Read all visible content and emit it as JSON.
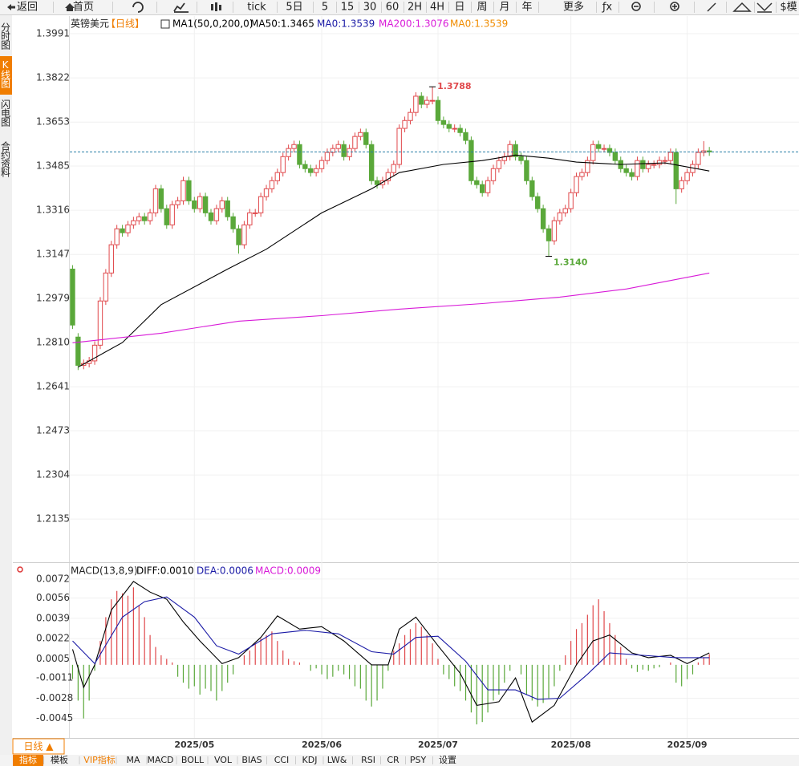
{
  "toolbar": [
    "返回",
    "首页",
    "tick",
    "5日",
    "5",
    "15",
    "30",
    "60",
    "2H",
    "4H",
    "日",
    "周",
    "月",
    "年",
    "更多",
    "ƒx",
    "$模"
  ],
  "sidebar": [
    "分时图",
    "K线图",
    "闪电图",
    "合约资料"
  ],
  "chart_data": [
    {
      "type": "candlestick",
      "title": "英镑美元",
      "period": "【日线】",
      "legend": [
        {
          "text": "MA1(50,0,200,0)",
          "color": "#000000"
        },
        {
          "text": "MA0:1.3539",
          "color": "#1a1aa6"
        },
        {
          "text": "MA0:1.3539",
          "color": "#f08c00"
        }
      ],
      "up_color": "#e0484b",
      "down_color": "#5aa83a",
      "grid": true,
      "xlim": [
        -0.5,
        131.2
      ],
      "xticks": [
        {
          "value": 22,
          "label": "2025/05"
        },
        {
          "value": 45,
          "label": "2025/06"
        },
        {
          "value": 66,
          "label": "2025/07"
        },
        {
          "value": 90,
          "label": "2025/08"
        },
        {
          "value": 111,
          "label": "2025/09"
        }
      ],
      "ylim": [
        1.1973,
        1.4034
      ],
      "yticks": [
        1.3991,
        1.3822,
        1.3653,
        1.3485,
        1.3316,
        1.3147,
        1.2979,
        {
          "value": 1.281,
          "label": "1.2810"
        },
        1.2641,
        1.2473,
        1.2304,
        1.2135
      ],
      "open": [
        1.3091,
        1.2831,
        1.2723,
        1.273,
        1.274,
        1.28,
        1.2969,
        1.3076,
        1.3184,
        1.3245,
        1.323,
        1.326,
        1.3276,
        1.3291,
        1.3276,
        1.3306,
        1.3398,
        1.3322,
        1.326,
        1.3337,
        1.3352,
        1.3429,
        1.3352,
        1.3322,
        1.3368,
        1.3306,
        1.3276,
        1.3322,
        1.3352,
        1.3291,
        1.3245,
        1.3184,
        1.326,
        1.3306,
        1.3306,
        1.3368,
        1.3398,
        1.3429,
        1.346,
        1.3521,
        1.3552,
        1.3567,
        1.3491,
        1.3475,
        1.346,
        1.3475,
        1.3506,
        1.3537,
        1.3552,
        1.3567,
        1.3521,
        1.3552,
        1.3598,
        1.3613,
        1.3567,
        1.3429,
        1.3414,
        1.3429,
        1.346,
        1.3491,
        1.3629,
        1.3659,
        1.369,
        1.3752,
        1.3721,
        1.3736,
        1.3736,
        1.3659,
        1.3644,
        1.3629,
        1.3629,
        1.3613,
        1.3583,
        1.3429,
        1.3414,
        1.3383,
        1.3429,
        1.3475,
        1.3506,
        1.3521,
        1.3567,
        1.3521,
        1.3506,
        1.3429,
        1.3368,
        1.3322,
        1.3245,
        1.3199,
        1.3276,
        1.3306,
        1.3322,
        1.3383,
        1.3445,
        1.346,
        1.3506,
        1.3567,
        1.3552,
        1.3552,
        1.3537,
        1.3506,
        1.3475,
        1.346,
        1.3445,
        1.3506,
        1.3475,
        1.3491,
        1.3491,
        1.3506,
        1.3506,
        1.3537,
        1.3398,
        1.3429,
        1.346,
        1.3491,
        1.3537,
        1.3543
      ],
      "high": [
        1.3106,
        1.2846,
        1.2745,
        1.2755,
        1.2815,
        1.2984,
        1.3091,
        1.3199,
        1.326,
        1.326,
        1.3275,
        1.3291,
        1.3306,
        1.3306,
        1.3321,
        1.3413,
        1.3413,
        1.3337,
        1.3352,
        1.3367,
        1.3444,
        1.3444,
        1.3367,
        1.3383,
        1.3383,
        1.3321,
        1.3337,
        1.3367,
        1.3367,
        1.3306,
        1.326,
        1.3275,
        1.3321,
        1.3321,
        1.3383,
        1.3413,
        1.3444,
        1.3475,
        1.3536,
        1.3567,
        1.3582,
        1.3582,
        1.3506,
        1.349,
        1.349,
        1.3521,
        1.3552,
        1.3567,
        1.3582,
        1.3582,
        1.3567,
        1.3613,
        1.3628,
        1.3628,
        1.3582,
        1.3444,
        1.3444,
        1.3475,
        1.3506,
        1.3644,
        1.3674,
        1.3705,
        1.3767,
        1.3767,
        1.3751,
        1.3788,
        1.3751,
        1.3674,
        1.3659,
        1.3644,
        1.3644,
        1.3628,
        1.3598,
        1.3444,
        1.3429,
        1.3444,
        1.349,
        1.3521,
        1.3536,
        1.3582,
        1.3582,
        1.3536,
        1.3521,
        1.3444,
        1.3383,
        1.3337,
        1.326,
        1.3291,
        1.3321,
        1.3337,
        1.3398,
        1.346,
        1.3475,
        1.3521,
        1.3582,
        1.3582,
        1.3567,
        1.3567,
        1.3552,
        1.3521,
        1.349,
        1.3475,
        1.3521,
        1.3521,
        1.3506,
        1.3506,
        1.3521,
        1.3521,
        1.3552,
        1.3552,
        1.3444,
        1.3475,
        1.3506,
        1.3552,
        1.358,
        1.3558
      ],
      "low": [
        1.2862,
        1.2705,
        1.2708,
        1.2715,
        1.2725,
        1.2785,
        1.2954,
        1.3061,
        1.3169,
        1.3215,
        1.3215,
        1.3245,
        1.3261,
        1.3261,
        1.3261,
        1.3291,
        1.3307,
        1.3245,
        1.3245,
        1.3322,
        1.3337,
        1.3337,
        1.3307,
        1.3307,
        1.3291,
        1.3261,
        1.3261,
        1.3307,
        1.3276,
        1.323,
        1.315,
        1.3169,
        1.3245,
        1.3291,
        1.3291,
        1.3353,
        1.3383,
        1.3414,
        1.3445,
        1.3506,
        1.3537,
        1.3476,
        1.346,
        1.3445,
        1.3445,
        1.346,
        1.3491,
        1.3522,
        1.3537,
        1.3506,
        1.3506,
        1.3537,
        1.3583,
        1.3552,
        1.3414,
        1.3399,
        1.3399,
        1.3414,
        1.3445,
        1.3476,
        1.3614,
        1.3644,
        1.3675,
        1.3706,
        1.3706,
        1.3721,
        1.3644,
        1.3629,
        1.3614,
        1.3614,
        1.3598,
        1.3568,
        1.3414,
        1.3399,
        1.3368,
        1.3368,
        1.3414,
        1.346,
        1.3491,
        1.3506,
        1.3506,
        1.3491,
        1.3414,
        1.3353,
        1.3307,
        1.323,
        1.314,
        1.3184,
        1.3261,
        1.3291,
        1.3307,
        1.3368,
        1.343,
        1.3445,
        1.3491,
        1.3537,
        1.3537,
        1.3522,
        1.3491,
        1.346,
        1.3445,
        1.343,
        1.343,
        1.346,
        1.346,
        1.3476,
        1.3476,
        1.3491,
        1.3491,
        1.334,
        1.3383,
        1.3414,
        1.3445,
        1.3476,
        1.3522,
        1.3524
      ],
      "close": [
        1.2877,
        1.2723,
        1.273,
        1.274,
        1.28,
        1.2969,
        1.3076,
        1.3184,
        1.3245,
        1.323,
        1.326,
        1.3276,
        1.3291,
        1.3276,
        1.3306,
        1.3398,
        1.3322,
        1.326,
        1.3337,
        1.3352,
        1.3429,
        1.3352,
        1.3322,
        1.3368,
        1.3306,
        1.3276,
        1.3322,
        1.3352,
        1.3291,
        1.3245,
        1.3184,
        1.326,
        1.3306,
        1.3306,
        1.3368,
        1.3398,
        1.3429,
        1.346,
        1.3521,
        1.3552,
        1.3567,
        1.3491,
        1.3475,
        1.346,
        1.3475,
        1.3506,
        1.3537,
        1.3552,
        1.3567,
        1.3521,
        1.3552,
        1.3598,
        1.3613,
        1.3567,
        1.3429,
        1.3414,
        1.3429,
        1.346,
        1.3491,
        1.3629,
        1.3659,
        1.369,
        1.3752,
        1.3721,
        1.3736,
        1.3736,
        1.3659,
        1.3644,
        1.3629,
        1.3629,
        1.3613,
        1.3583,
        1.3429,
        1.3414,
        1.3383,
        1.3429,
        1.3475,
        1.3506,
        1.3521,
        1.3567,
        1.3521,
        1.3506,
        1.3429,
        1.3368,
        1.3322,
        1.3245,
        1.3199,
        1.3276,
        1.3306,
        1.3322,
        1.3383,
        1.3445,
        1.346,
        1.3506,
        1.3567,
        1.3552,
        1.3552,
        1.3537,
        1.3506,
        1.3475,
        1.346,
        1.3445,
        1.3506,
        1.3475,
        1.3491,
        1.3491,
        1.3506,
        1.3506,
        1.3537,
        1.3398,
        1.3429,
        1.346,
        1.3491,
        1.3537,
        1.3543,
        1.3539
      ],
      "lines": [
        {
          "legend": "MA50:1.3465",
          "color": "#000000",
          "x": [
            1,
            9,
            16,
            28,
            35,
            45,
            54,
            59,
            67,
            74,
            80,
            86,
            91,
            99,
            107,
            115
          ],
          "values": [
            1.2716,
            1.281,
            1.2955,
            1.3091,
            1.3167,
            1.3306,
            1.3398,
            1.346,
            1.3491,
            1.3506,
            1.3527,
            1.3515,
            1.35,
            1.3491,
            1.3497,
            1.3466
          ]
        },
        {
          "legend": "MA200:1.3076",
          "color": "#d81ad8",
          "x": [
            0,
            16,
            30,
            45,
            59,
            74,
            88,
            100,
            115
          ],
          "values": [
            1.2809,
            1.2846,
            1.2892,
            1.2913,
            1.2938,
            1.2959,
            1.2984,
            1.3015,
            1.3076
          ]
        }
      ],
      "annotations": [
        {
          "index": 65,
          "value": 1.3788,
          "color": "#e0484b"
        },
        {
          "index": 86,
          "value": 1.314,
          "label": "1.3140",
          "color": "#5aa83a"
        }
      ]
    },
    {
      "type": "macd",
      "title": "MACD(13,8,9)",
      "up_color": "#e0484b",
      "down_color": "#5aa83a",
      "grid": true,
      "xlim": [
        -0.5,
        131.2
      ],
      "ylim": [
        -0.006,
        0.008
      ],
      "yticks": [
        0.0072,
        0.0056,
        0.0039,
        0.0022,
        0.0005,
        -0.0011,
        -0.0028,
        -0.0045
      ],
      "lines": [
        {
          "legend": "DIFF:0.0010",
          "color": "#000000",
          "x": [
            0,
            2,
            4,
            7,
            11,
            14,
            17,
            20,
            23,
            27,
            30,
            34,
            37,
            41,
            45,
            49,
            54,
            57,
            59,
            62,
            66,
            70,
            73,
            77,
            80,
            83,
            87,
            91,
            94,
            97,
            101,
            104,
            108,
            111,
            115
          ],
          "values": [
            0.0013,
            -0.0019,
            0.0,
            0.0046,
            0.007,
            0.0061,
            0.0055,
            0.0036,
            0.002,
            0.0001,
            0.0006,
            0.0023,
            0.0041,
            0.003,
            0.0032,
            0.002,
            0.0,
            0.0,
            0.003,
            0.004,
            0.0016,
            -0.0007,
            -0.0034,
            -0.0031,
            -0.0011,
            -0.0048,
            -0.0034,
            0.0,
            0.002,
            0.0025,
            0.001,
            0.0006,
            0.0008,
            0.0001,
            0.001
          ]
        },
        {
          "legend": "DEA:0.0006",
          "color": "#1a1aa6",
          "x": [
            0,
            4,
            9,
            13,
            17,
            22,
            26,
            30,
            36,
            42,
            48,
            54,
            58,
            62,
            66,
            71,
            75,
            80,
            84,
            88,
            93,
            97,
            103,
            109,
            115
          ],
          "values": [
            0.002,
            0.0001,
            0.004,
            0.0053,
            0.0057,
            0.004,
            0.0016,
            0.0009,
            0.0026,
            0.0029,
            0.0026,
            0.0011,
            0.0009,
            0.0023,
            0.0024,
            0.0003,
            -0.0021,
            -0.0021,
            -0.0029,
            -0.0028,
            -0.0008,
            0.001,
            0.0008,
            0.0006,
            0.0006
          ]
        }
      ],
      "histogram": {
        "legend": "MACD:0.0009",
        "color": "#d81ad8",
        "values": [
          -0.0012,
          -0.003,
          -0.0045,
          -0.003,
          -0.0005,
          0.002,
          0.004,
          0.0055,
          0.0062,
          0.006,
          0.0058,
          0.0065,
          0.005,
          0.004,
          0.0025,
          0.0015,
          0.0008,
          0.0005,
          0.0002,
          -0.001,
          -0.0015,
          -0.002,
          -0.0018,
          -0.0025,
          -0.002,
          -0.0022,
          -0.003,
          -0.0022,
          -0.0015,
          -0.0008,
          0.0,
          0.0008,
          0.0012,
          0.0018,
          0.0022,
          0.0025,
          0.0028,
          0.002,
          0.0012,
          0.0005,
          0.0003,
          0.0002,
          0.0,
          -0.0005,
          -0.0003,
          -0.0008,
          -0.0012,
          -0.001,
          -0.0005,
          -0.0008,
          -0.0012,
          -0.0018,
          -0.002,
          -0.003,
          -0.0035,
          -0.003,
          -0.002,
          -0.0005,
          0.0012,
          0.0018,
          0.0025,
          0.003,
          0.0035,
          0.0032,
          0.0025,
          0.0018,
          0.0005,
          -0.0008,
          -0.0012,
          -0.0018,
          -0.0022,
          -0.003,
          -0.004,
          -0.005,
          -0.0048,
          -0.004,
          -0.003,
          -0.0025,
          -0.0015,
          -0.0005,
          0.0,
          -0.0008,
          -0.0025,
          -0.003,
          -0.0035,
          -0.0032,
          -0.0028,
          -0.0018,
          -0.0005,
          0.0008,
          0.002,
          0.003,
          0.0035,
          0.0042,
          0.005,
          0.0055,
          0.0045,
          0.0035,
          0.0025,
          0.0015,
          0.0005,
          -0.0003,
          -0.0006,
          -0.0004,
          -0.0005,
          -0.0003,
          -0.0002,
          0.0,
          0.0002,
          -0.0015,
          -0.0018,
          -0.0012,
          -0.0008,
          0.0002,
          0.0006,
          0.0009
        ]
      }
    }
  ],
  "bottom": {
    "period": "日线 ▲",
    "tabs": [
      "指标",
      "模板",
      "VIP指标",
      "MA",
      "MACD",
      "BOLL",
      "VOL",
      "BIAS",
      "CCI",
      "KDJ",
      "LW&",
      "RSI",
      "CR",
      "PSY",
      "设置"
    ]
  }
}
